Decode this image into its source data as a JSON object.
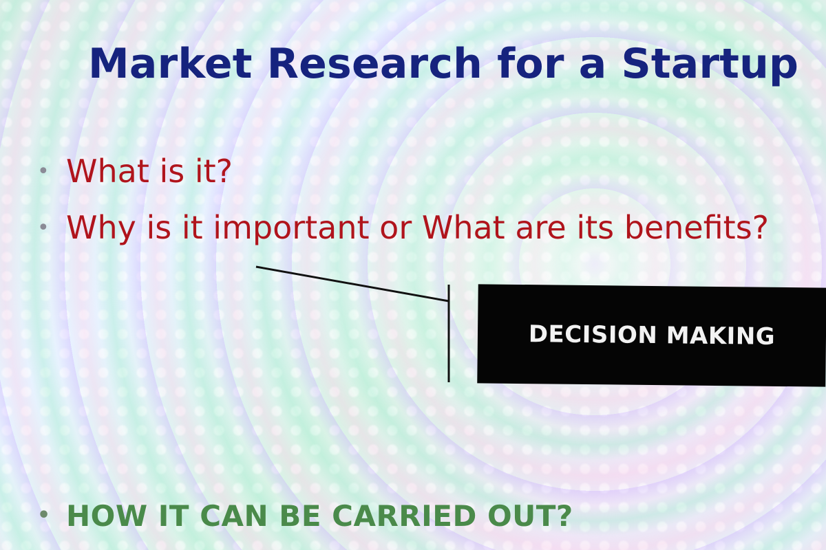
{
  "slide": {
    "title": "Market Research for a Startup",
    "bullets": [
      {
        "marker": "•",
        "text": "What is it?"
      },
      {
        "marker": "•",
        "text": "Why is it important or What are its benefits?"
      },
      {
        "marker": "•",
        "text": "HOW IT CAN BE CARRIED OUT?"
      }
    ],
    "callout": {
      "label": "DECISION MAKING"
    },
    "colors": {
      "title": "#16237e",
      "bullet_text": "#b0141c",
      "last_bullet_text": "#4a8a4a",
      "callout_bg": "#050505",
      "callout_text": "#f2f2f2"
    }
  }
}
